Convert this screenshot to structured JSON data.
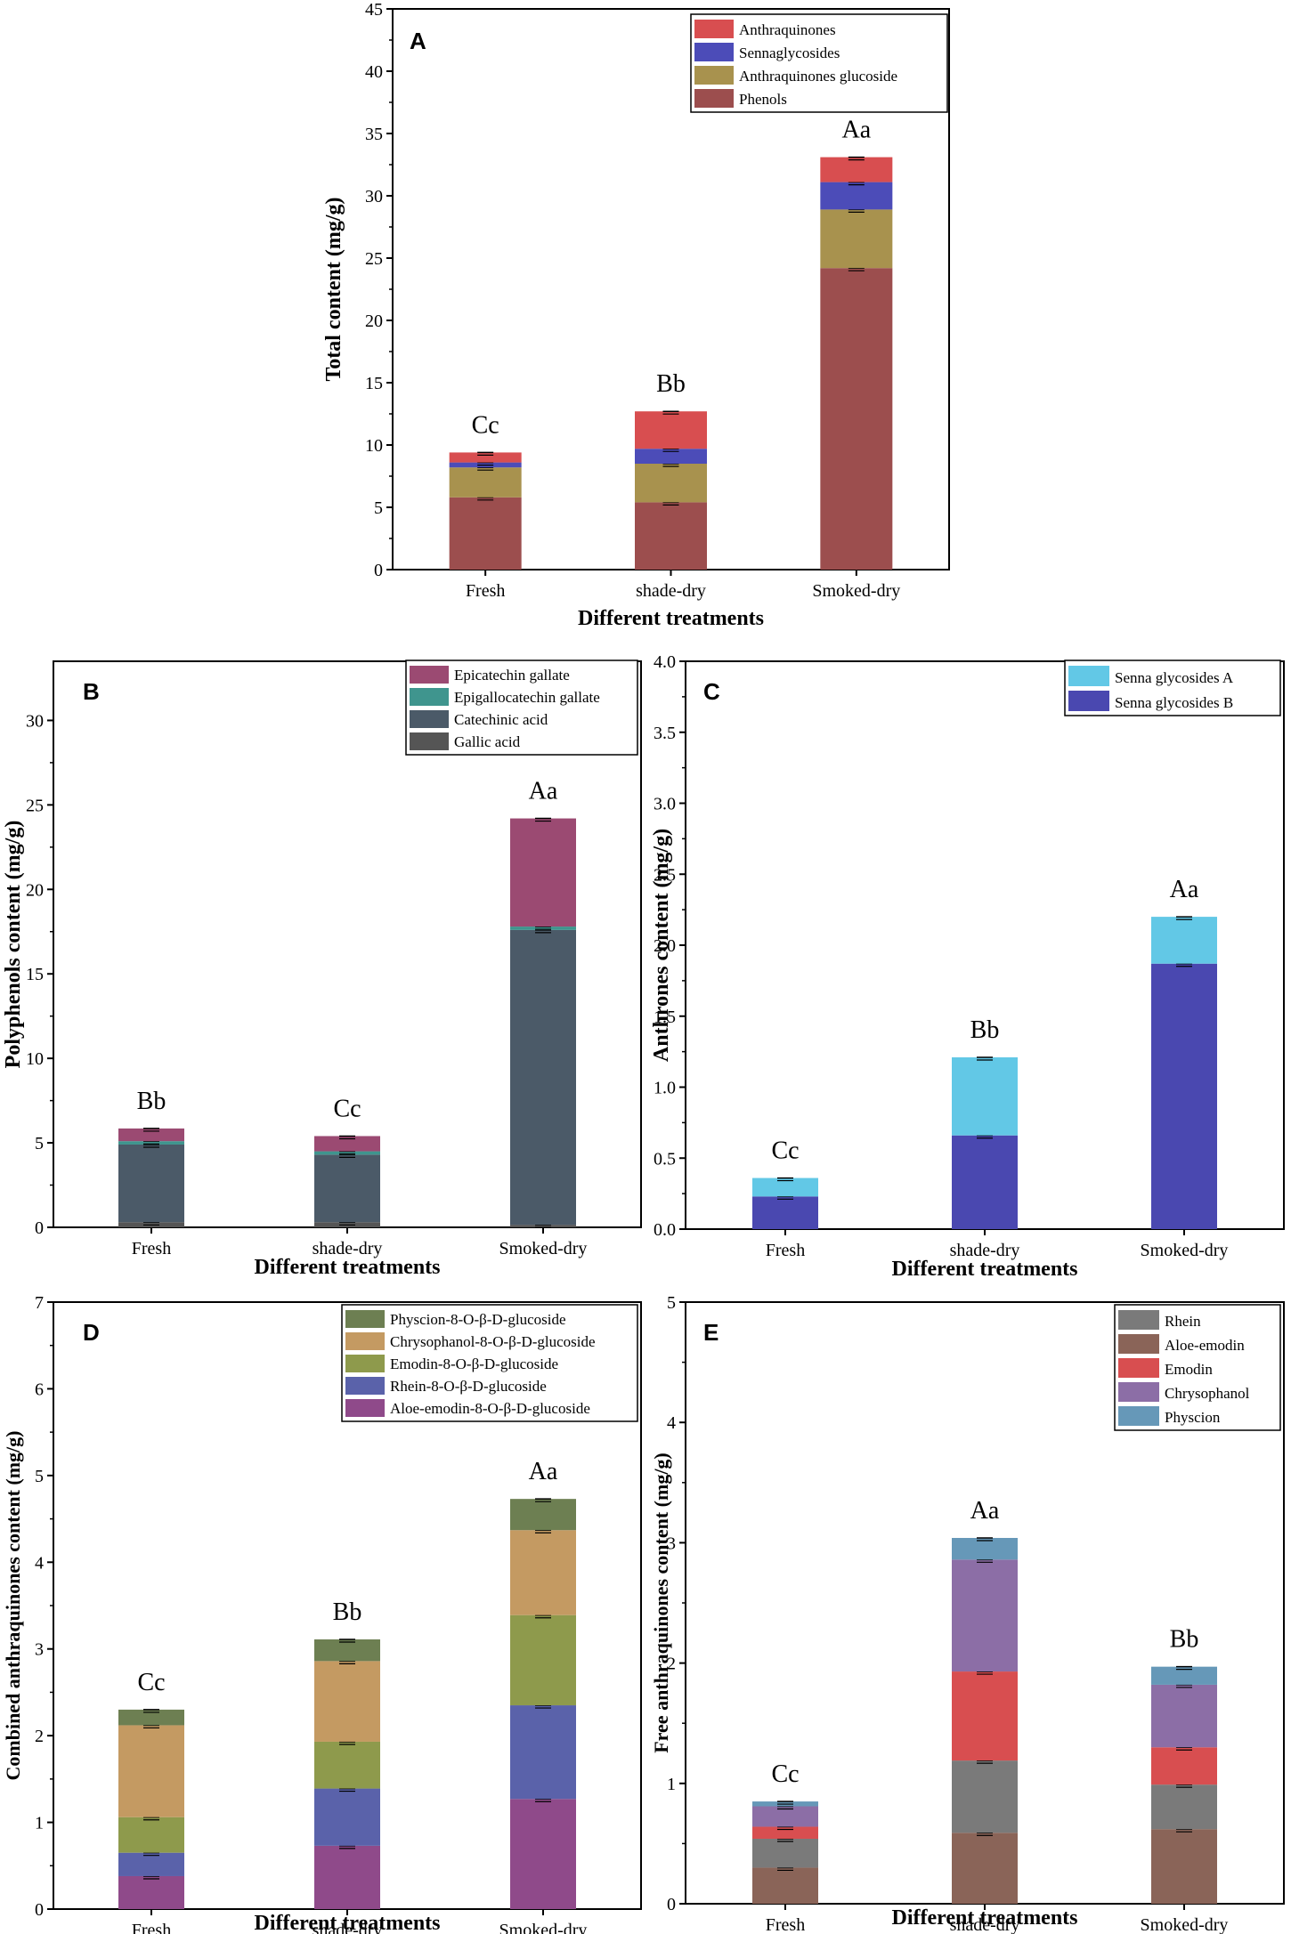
{
  "chart_data": [
    {
      "panel": "A",
      "type": "bar",
      "stacked": true,
      "ylabel": "Total content (mg/g)",
      "xlabel": "Different treatments",
      "ylim": [
        0,
        45
      ],
      "yticks": [
        0,
        5,
        10,
        15,
        20,
        25,
        30,
        35,
        40,
        45
      ],
      "categories": [
        "Fresh",
        "shade-dry",
        "Smoked-dry"
      ],
      "legend_position": "top-right",
      "series": [
        {
          "name": "Phenols",
          "color": "#9c4e4e",
          "values": [
            5.8,
            5.4,
            24.2
          ]
        },
        {
          "name": "Anthraquinones glucoside",
          "color": "#a8924e",
          "values": [
            2.4,
            3.1,
            4.7
          ]
        },
        {
          "name": "Sennaglycosides",
          "color": "#4c4cb8",
          "values": [
            0.4,
            1.2,
            2.2
          ]
        },
        {
          "name": "Anthraquinones",
          "color": "#d84e50",
          "values": [
            0.8,
            3.0,
            2.0
          ]
        }
      ],
      "annotations": [
        "Cc",
        "Bb",
        "Aa"
      ]
    },
    {
      "panel": "B",
      "type": "bar",
      "stacked": true,
      "ylabel": "Polyphenols content (mg/g)",
      "xlabel": "Different treatments",
      "ylim": [
        0,
        33.5
      ],
      "yticks": [
        0,
        5,
        10,
        15,
        20,
        25,
        30
      ],
      "categories": [
        "Fresh",
        "shade-dry",
        "Smoked-dry"
      ],
      "legend_position": "top-right",
      "series": [
        {
          "name": "Gallic acid",
          "color": "#555555",
          "values": [
            0.3,
            0.3,
            0.15
          ]
        },
        {
          "name": "Catechinic acid",
          "color": "#4b5a68",
          "values": [
            4.6,
            4.0,
            17.45
          ]
        },
        {
          "name": "Epigallocatechin gallate",
          "color": "#3f958e",
          "values": [
            0.2,
            0.2,
            0.2
          ]
        },
        {
          "name": "Epicatechin gallate",
          "color": "#9b4a72",
          "values": [
            0.75,
            0.9,
            6.4
          ]
        }
      ],
      "annotations": [
        "Bb",
        "Cc",
        "Aa"
      ]
    },
    {
      "panel": "C",
      "type": "bar",
      "stacked": true,
      "ylabel": "Anthrones content (mg/g)",
      "xlabel": "Different treatments",
      "ylim": [
        0,
        4.0
      ],
      "yticks": [
        0.0,
        0.5,
        1.0,
        1.5,
        2.0,
        2.5,
        3.0,
        3.5,
        4.0
      ],
      "categories": [
        "Fresh",
        "shade-dry",
        "Smoked-dry"
      ],
      "legend_position": "top-right",
      "series": [
        {
          "name": "Senna glycosides B",
          "color": "#4a48b0",
          "values": [
            0.23,
            0.66,
            1.87
          ]
        },
        {
          "name": "Senna glycosides A",
          "color": "#62c8e6",
          "values": [
            0.13,
            0.55,
            0.33
          ]
        }
      ],
      "annotations": [
        "Cc",
        "Bb",
        "Aa"
      ]
    },
    {
      "panel": "D",
      "type": "bar",
      "stacked": true,
      "ylabel": "Combined anthraquinones content (mg/g)",
      "xlabel": "Different treatments",
      "ylim": [
        0,
        7
      ],
      "yticks": [
        0,
        1,
        2,
        3,
        4,
        5,
        6,
        7
      ],
      "categories": [
        "Fresh",
        "shade-dry",
        "Smoked-dry"
      ],
      "legend_position": "top-right",
      "series": [
        {
          "name": "Aloe-emodin-8-O-β-D-glucoside",
          "color": "#8f4a8a",
          "values": [
            0.38,
            0.73,
            1.27
          ]
        },
        {
          "name": "Rhein-8-O-β-D-glucoside",
          "color": "#5a62aa",
          "values": [
            0.27,
            0.66,
            1.08
          ]
        },
        {
          "name": "Emodin-8-O-β-D-glucoside",
          "color": "#8e9a4c",
          "values": [
            0.41,
            0.54,
            1.04
          ]
        },
        {
          "name": "Chrysophanol-8-O-β-D-glucoside",
          "color": "#c49a62",
          "values": [
            1.06,
            0.93,
            0.98
          ]
        },
        {
          "name": "Physcion-8-O-β-D-glucoside",
          "color": "#6d7f52",
          "values": [
            0.18,
            0.25,
            0.36
          ]
        }
      ],
      "annotations": [
        "Cc",
        "Bb",
        "Aa"
      ]
    },
    {
      "panel": "E",
      "type": "bar",
      "stacked": true,
      "ylabel": "Free anthraquinones content (mg/g)",
      "xlabel": "Different treatments",
      "ylim": [
        0,
        5
      ],
      "yticks": [
        0,
        1,
        2,
        3,
        4,
        5
      ],
      "categories": [
        "Fresh",
        "shade-dry",
        "Smoked-dry"
      ],
      "legend_position": "top-right",
      "series": [
        {
          "name": "Aloe-emodin",
          "color": "#8a6458",
          "values": [
            0.3,
            0.59,
            0.62
          ]
        },
        {
          "name": "Rhein",
          "color": "#7a7a7a",
          "values": [
            0.24,
            0.6,
            0.37
          ]
        },
        {
          "name": "Emodin",
          "color": "#d84e50",
          "values": [
            0.1,
            0.74,
            0.31
          ]
        },
        {
          "name": "Chrysophanol",
          "color": "#8c6ea6",
          "values": [
            0.17,
            0.93,
            0.52
          ]
        },
        {
          "name": "Physcion",
          "color": "#6698b8",
          "values": [
            0.04,
            0.18,
            0.15
          ]
        }
      ],
      "legend_order": [
        "Rhein",
        "Aloe-emodin",
        "Emodin",
        "Chrysophanol",
        "Physcion"
      ],
      "annotations": [
        "Cc",
        "Aa",
        "Bb"
      ]
    }
  ]
}
